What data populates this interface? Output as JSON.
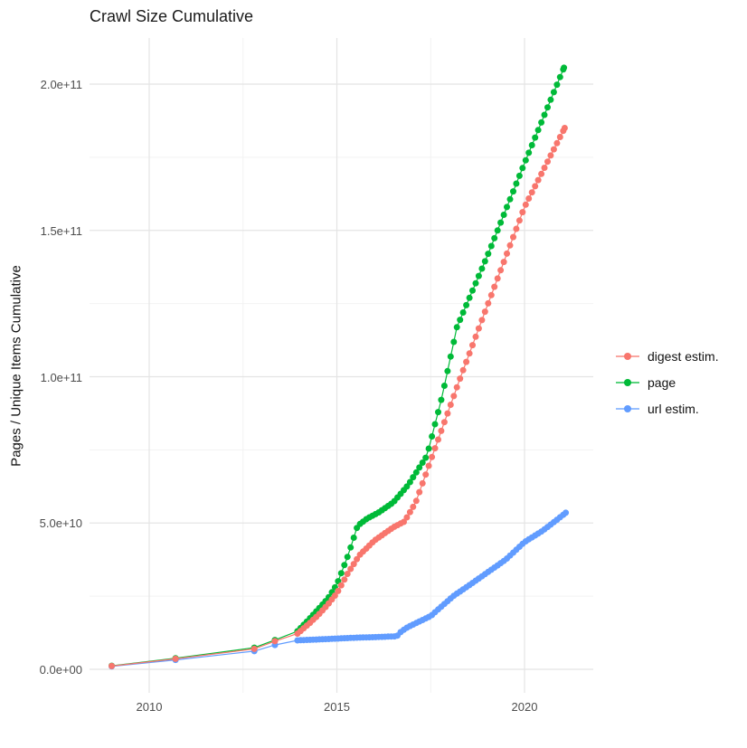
{
  "title": "Crawl Size Cumulative",
  "legend": {
    "items": [
      {
        "label": "digest estim.",
        "color": "#F8766D"
      },
      {
        "label": "page",
        "color": "#00BA38"
      },
      {
        "label": "url estim.",
        "color": "#619CFF"
      }
    ]
  },
  "colors": {
    "grid_major": "#e4e4e4",
    "grid_minor": "#f2f2f2",
    "axis_text": "#4d4d4d",
    "background": "#ffffff"
  },
  "chart_data": {
    "type": "line",
    "title": "Crawl Size Cumulative",
    "xlabel": "",
    "ylabel": "Pages / Unique Items Cumulative",
    "x_range_years": [
      2008.4,
      2021.8
    ],
    "ylim": [
      0,
      215000000000.0
    ],
    "grid": true,
    "legend_position": "right",
    "x_ticks": [
      {
        "label": "2010",
        "year": 2010
      },
      {
        "label": "2015",
        "year": 2015
      },
      {
        "label": "2020",
        "year": 2020
      }
    ],
    "x_minor": [
      2012.5,
      2017.5
    ],
    "y_ticks": [
      {
        "label": "0.0e+00",
        "value": 0
      },
      {
        "label": "5.0e+10",
        "value": 50000000000.0
      },
      {
        "label": "1.0e+11",
        "value": 100000000000.0
      },
      {
        "label": "1.5e+11",
        "value": 150000000000.0
      },
      {
        "label": "2.0e+11",
        "value": 200000000000.0
      }
    ],
    "y_minor": [
      25000000000.0,
      75000000000.0,
      125000000000.0,
      175000000000.0
    ],
    "dot_spacing_years": 0.0833,
    "sparse_until_year": 2013.9,
    "series": [
      {
        "name": "digest estim.",
        "color": "#F8766D",
        "points": [
          [
            2009.0,
            1100000000.0
          ],
          [
            2010.7,
            3600000000.0
          ],
          [
            2012.8,
            7000000000.0
          ],
          [
            2013.35,
            9600000000.0
          ],
          [
            2013.95,
            12200000000.0
          ],
          [
            2014.25,
            15500000000.0
          ],
          [
            2014.5,
            18500000000.0
          ],
          [
            2014.75,
            22000000000.0
          ],
          [
            2015.0,
            26000000000.0
          ],
          [
            2015.3,
            33000000000.0
          ],
          [
            2015.6,
            39000000000.0
          ],
          [
            2016.0,
            44000000000.0
          ],
          [
            2016.5,
            48500000000.0
          ],
          [
            2016.8,
            50500000000.0
          ],
          [
            2017.1,
            57000000000.0
          ],
          [
            2017.6,
            75000000000.0
          ],
          [
            2018.3,
            100000000000.0
          ],
          [
            2019.0,
            124000000000.0
          ],
          [
            2020.0,
            158000000000.0
          ],
          [
            2021.07,
            185000000000.0
          ]
        ]
      },
      {
        "name": "page",
        "color": "#00BA38",
        "points": [
          [
            2009.0,
            1200000000.0
          ],
          [
            2010.7,
            3800000000.0
          ],
          [
            2012.8,
            7400000000.0
          ],
          [
            2013.35,
            10000000000.0
          ],
          [
            2013.95,
            13000000000.0
          ],
          [
            2014.25,
            17000000000.0
          ],
          [
            2014.5,
            20500000000.0
          ],
          [
            2014.75,
            24000000000.0
          ],
          [
            2015.0,
            29000000000.0
          ],
          [
            2015.3,
            39000000000.0
          ],
          [
            2015.55,
            49000000000.0
          ],
          [
            2015.8,
            51500000000.0
          ],
          [
            2016.1,
            53500000000.0
          ],
          [
            2016.5,
            57000000000.0
          ],
          [
            2016.9,
            63000000000.0
          ],
          [
            2017.4,
            73000000000.0
          ],
          [
            2017.8,
            93000000000.0
          ],
          [
            2018.2,
            117000000000.0
          ],
          [
            2019.0,
            141000000000.0
          ],
          [
            2020.0,
            173000000000.0
          ],
          [
            2021.05,
            205600000000.0
          ]
        ]
      },
      {
        "name": "url estim.",
        "color": "#619CFF",
        "points": [
          [
            2009.0,
            1000000000.0
          ],
          [
            2010.7,
            3200000000.0
          ],
          [
            2012.8,
            6200000000.0
          ],
          [
            2013.35,
            8300000000.0
          ],
          [
            2013.95,
            9900000000.0
          ],
          [
            2014.5,
            10200000000.0
          ],
          [
            2015.0,
            10500000000.0
          ],
          [
            2015.5,
            10800000000.0
          ],
          [
            2016.0,
            11000000000.0
          ],
          [
            2016.6,
            11300000000.0
          ],
          [
            2016.72,
            13000000000.0
          ],
          [
            2016.9,
            14500000000.0
          ],
          [
            2017.5,
            18200000000.0
          ],
          [
            2018.1,
            25000000000.0
          ],
          [
            2018.5,
            28500000000.0
          ],
          [
            2019.0,
            33000000000.0
          ],
          [
            2019.5,
            37500000000.0
          ],
          [
            2020.0,
            43500000000.0
          ],
          [
            2020.5,
            47500000000.0
          ],
          [
            2021.1,
            53500000000.0
          ]
        ]
      }
    ]
  }
}
